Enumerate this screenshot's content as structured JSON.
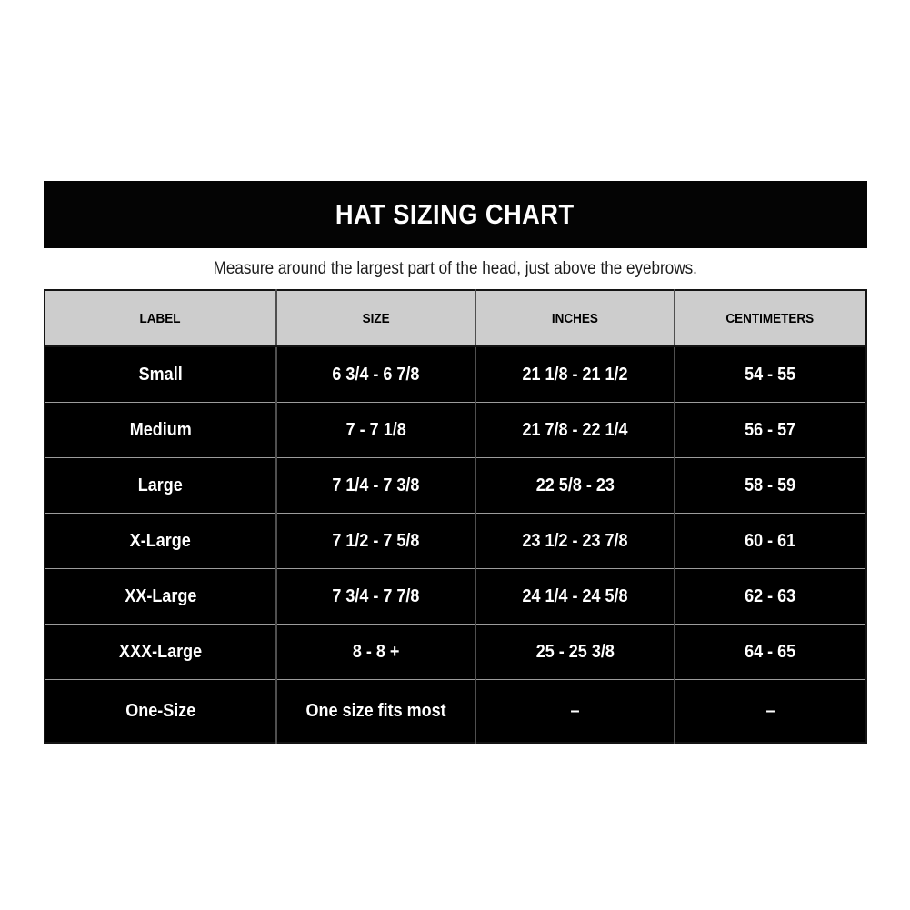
{
  "title": "HAT SIZING CHART",
  "subtitle": "Measure around the largest part of the head, just above the eyebrows.",
  "table": {
    "headers": [
      "LABEL",
      "SIZE",
      "INCHES",
      "CENTIMETERS"
    ],
    "rows": [
      [
        "Small",
        "6 3/4 - 6 7/8",
        "21 1/8 - 21 1/2",
        "54 - 55"
      ],
      [
        "Medium",
        "7 - 7 1/8",
        "21 7/8 - 22 1/4",
        "56 - 57"
      ],
      [
        "Large",
        "7 1/4 - 7 3/8",
        "22 5/8 - 23",
        "58 - 59"
      ],
      [
        "X-Large",
        "7 1/2 - 7 5/8",
        "23 1/2 - 23 7/8",
        "60 - 61"
      ],
      [
        "XX-Large",
        "7 3/4 - 7 7/8",
        "24 1/4 - 24 5/8",
        "62 - 63"
      ],
      [
        "XXX-Large",
        "8 - 8 +",
        "25 - 25 3/8",
        "64 - 65"
      ],
      [
        "One-Size",
        "One size fits most",
        "–",
        "–"
      ]
    ]
  },
  "chart_data": {
    "type": "table",
    "title": "HAT SIZING CHART",
    "subtitle": "Measure around the largest part of the head, just above the eyebrows.",
    "columns": [
      "LABEL",
      "SIZE",
      "INCHES",
      "CENTIMETERS"
    ],
    "rows": [
      {
        "label": "Small",
        "size": "6 3/4 - 6 7/8",
        "inches": "21 1/8 - 21 1/2",
        "centimeters": "54 - 55"
      },
      {
        "label": "Medium",
        "size": "7 - 7 1/8",
        "inches": "21 7/8 - 22 1/4",
        "centimeters": "56 - 57"
      },
      {
        "label": "Large",
        "size": "7 1/4 - 7 3/8",
        "inches": "22 5/8 - 23",
        "centimeters": "58 - 59"
      },
      {
        "label": "X-Large",
        "size": "7 1/2 - 7 5/8",
        "inches": "23 1/2 - 23 7/8",
        "centimeters": "60 - 61"
      },
      {
        "label": "XX-Large",
        "size": "7 3/4 - 7 7/8",
        "inches": "24 1/4 - 24 5/8",
        "centimeters": "62 - 63"
      },
      {
        "label": "XXX-Large",
        "size": "8 - 8 +",
        "inches": "25 - 25 3/8",
        "centimeters": "64 - 65"
      },
      {
        "label": "One-Size",
        "size": "One size fits most",
        "inches": "–",
        "centimeters": "–"
      }
    ]
  },
  "colors": {
    "title_bar_bg": "#040404",
    "title_text": "#ffffff",
    "header_bg": "#cdcdcd",
    "header_text": "#000000",
    "row_bg": "#000000",
    "row_text": "#ffffff",
    "outer_border": "#141414",
    "column_divider": "#4f4f4f",
    "row_divider": "#9c9c9c"
  }
}
